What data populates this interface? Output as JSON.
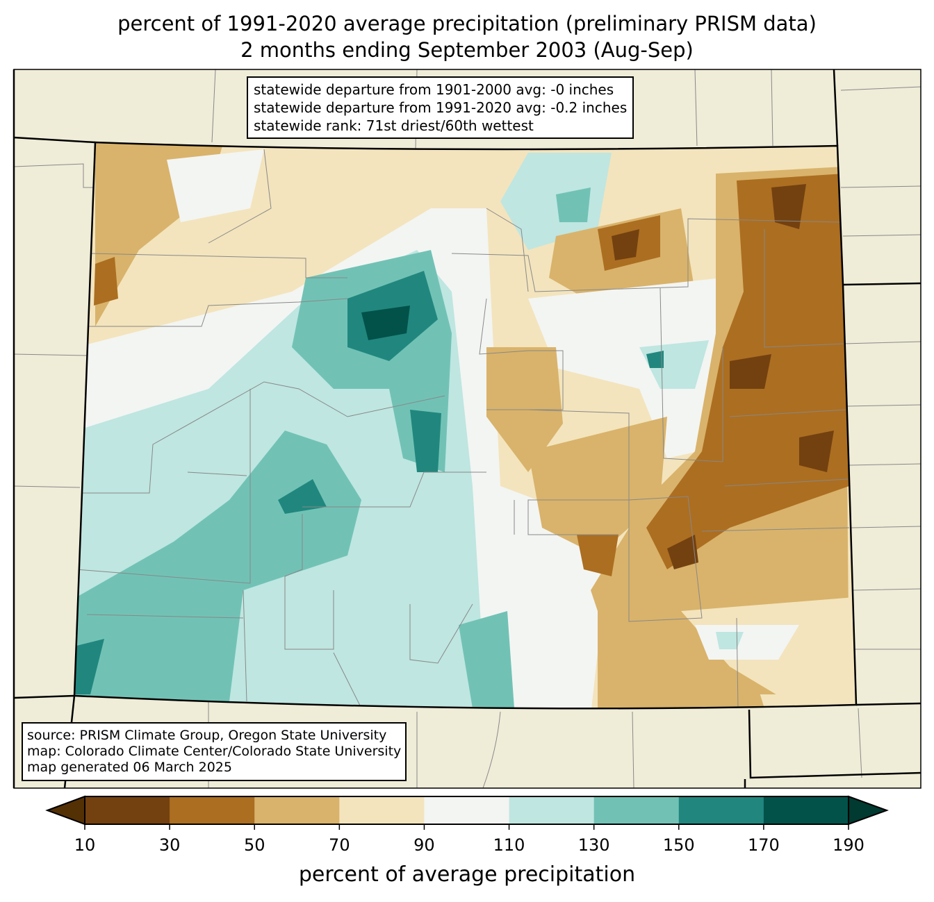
{
  "title": {
    "line1": "percent of 1991-2020 average precipitation (preliminary PRISM data)",
    "line2": "2 months ending September 2003 (Aug-Sep)"
  },
  "stats": {
    "line1": "statewide departure from 1901-2000 avg: -0 inches",
    "line2": "statewide departure from 1991-2020 avg: -0.2 inches",
    "line3": "statewide rank: 71st driest/60th wettest"
  },
  "source": {
    "line1": "source: PRISM Climate Group, Oregon State University",
    "line2": "map: Colorado Climate Center/Colorado State University",
    "line3": "map generated 06 March 2025"
  },
  "colorbar": {
    "label": "percent of average precipitation",
    "ticks": [
      "10",
      "30",
      "50",
      "70",
      "90",
      "110",
      "130",
      "150",
      "170",
      "190"
    ],
    "under_color": "#543005",
    "over_color": "#003a30",
    "colors": [
      "#734110",
      "#ac6e21",
      "#d9b36b",
      "#f3e4bd",
      "#f3f5f3",
      "#bfe6e1",
      "#71c2b5",
      "#21877e",
      "#02524a"
    ]
  }
}
